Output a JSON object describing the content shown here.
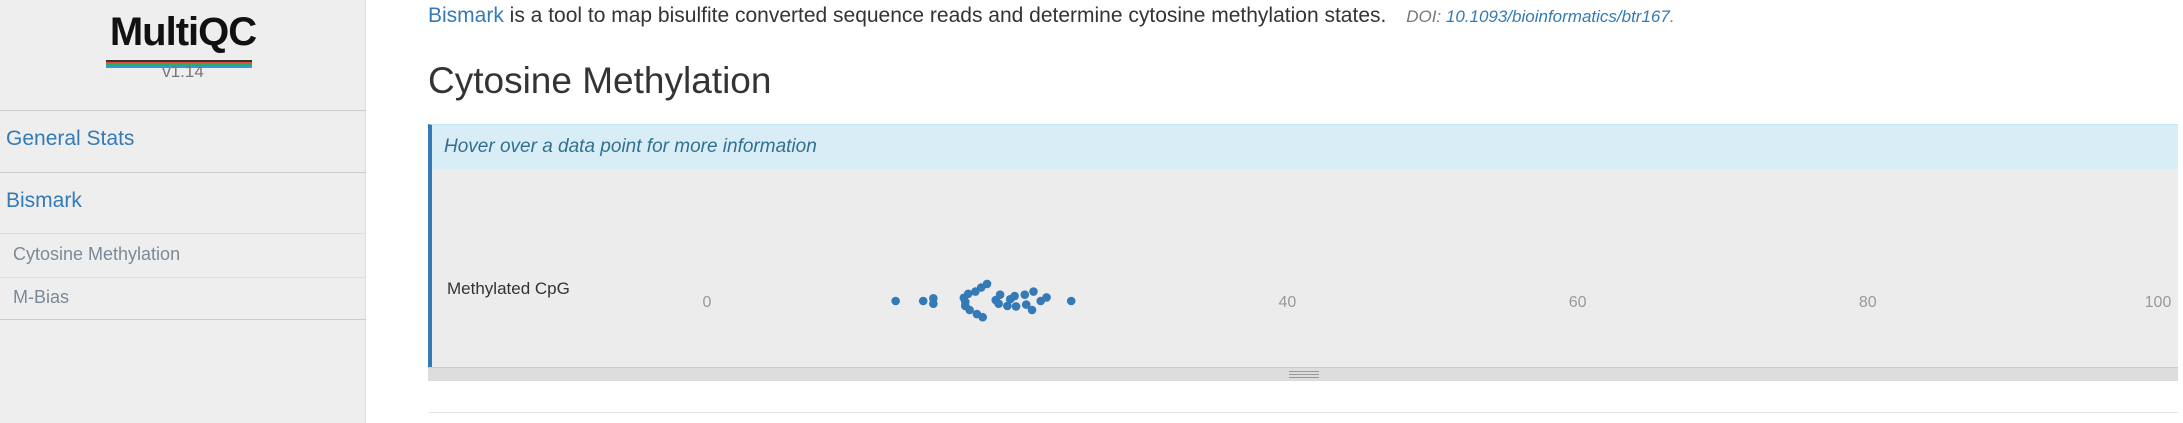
{
  "app": {
    "logo_text": "MultiQC",
    "version": "v1.14",
    "logo_stripe_colors": [
      "#333333",
      "#e74c3c",
      "#27ae60",
      "#3498db"
    ]
  },
  "sidebar": {
    "items": [
      {
        "label": "General Stats",
        "level": 1
      },
      {
        "label": "Bismark",
        "level": 1
      },
      {
        "label": "Cytosine Methylation",
        "level": 2
      },
      {
        "label": "M-Bias",
        "level": 2
      }
    ]
  },
  "intro": {
    "tool_link": "Bismark",
    "description": " is a tool to map bisulfite converted sequence reads and determine cytosine methylation states.",
    "doi_label": "DOI: ",
    "doi_link": "10.1093/bioinformatics/btr167",
    "doi_suffix": "."
  },
  "section": {
    "title": "Cytosine Methylation",
    "hover_hint": "Hover over a data point for more information"
  },
  "colors": {
    "accent": "#337ab7",
    "point": "#337ab7"
  },
  "chart_data": {
    "type": "scatter",
    "series": [
      {
        "label": "Methylated CpG",
        "points": [
          {
            "x": 13.0,
            "y": 0.0
          },
          {
            "x": 14.9,
            "y": 0.0
          },
          {
            "x": 15.6,
            "y": 0.3
          },
          {
            "x": 15.6,
            "y": -0.3
          },
          {
            "x": 17.7,
            "y": 0.35
          },
          {
            "x": 17.8,
            "y": -0.1
          },
          {
            "x": 17.8,
            "y": -0.55
          },
          {
            "x": 18.0,
            "y": 0.8
          },
          {
            "x": 18.1,
            "y": -1.0
          },
          {
            "x": 18.5,
            "y": 1.05
          },
          {
            "x": 18.6,
            "y": -1.45
          },
          {
            "x": 18.9,
            "y": 1.5
          },
          {
            "x": 19.0,
            "y": -1.8
          },
          {
            "x": 19.3,
            "y": 1.9
          },
          {
            "x": 19.9,
            "y": 0.1
          },
          {
            "x": 20.1,
            "y": -0.3
          },
          {
            "x": 20.2,
            "y": 0.7
          },
          {
            "x": 20.7,
            "y": -0.55
          },
          {
            "x": 20.9,
            "y": 0.2
          },
          {
            "x": 21.2,
            "y": 0.55
          },
          {
            "x": 21.3,
            "y": -0.6
          },
          {
            "x": 21.9,
            "y": 0.7
          },
          {
            "x": 22.0,
            "y": -0.4
          },
          {
            "x": 22.4,
            "y": -1.0
          },
          {
            "x": 22.5,
            "y": 1.05
          },
          {
            "x": 23.0,
            "y": 0.0
          },
          {
            "x": 23.4,
            "y": 0.4
          },
          {
            "x": 25.1,
            "y": 0.0
          }
        ]
      }
    ],
    "xticks": [
      0,
      40,
      60,
      80,
      100
    ],
    "xlim": [
      0,
      100
    ],
    "grid": false,
    "legend": "none"
  }
}
